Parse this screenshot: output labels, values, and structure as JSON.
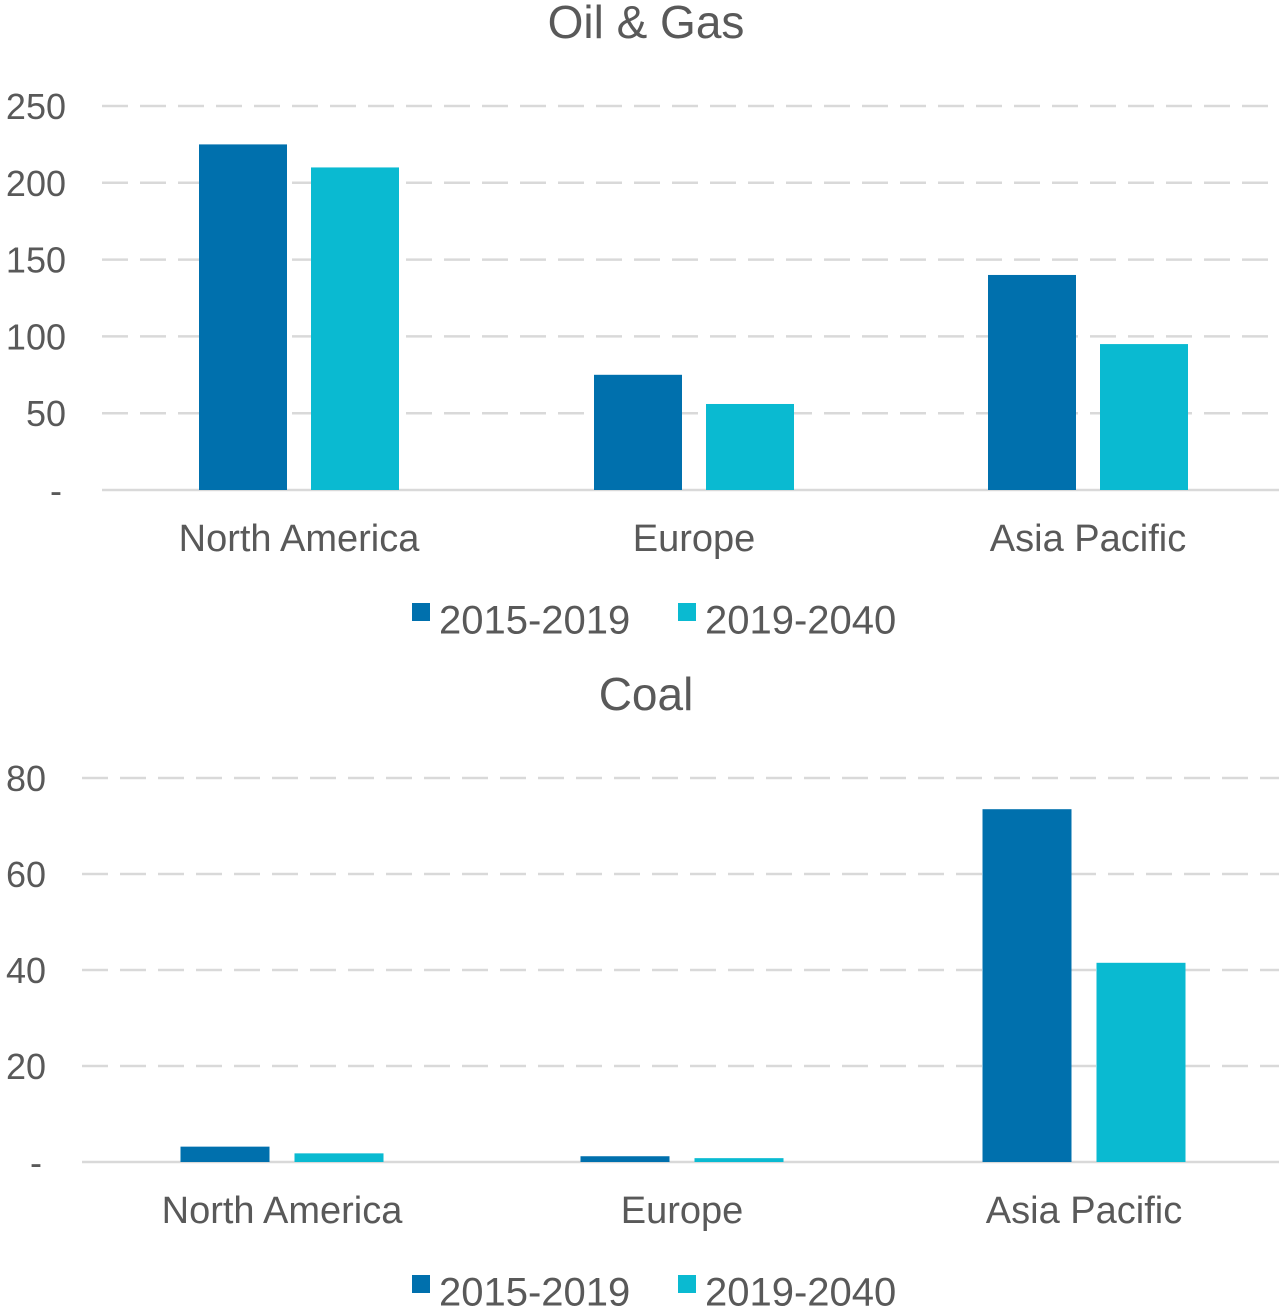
{
  "chart_data": [
    {
      "type": "bar",
      "title": "Oil & Gas",
      "xlabel": "",
      "ylabel": "",
      "categories": [
        "North America",
        "Europe",
        "Asia Pacific"
      ],
      "series": [
        {
          "name": "2015-2019",
          "color": "#0070AD",
          "values": [
            225,
            75,
            140
          ]
        },
        {
          "name": "2019-2040",
          "color": "#0ABAD1",
          "values": [
            210,
            56,
            95
          ]
        }
      ],
      "ylim": [
        0,
        250
      ],
      "yticks": [
        0,
        50,
        100,
        150,
        200,
        250
      ],
      "ytick_labels": [
        "-",
        "50",
        "100",
        "150",
        "200",
        "250"
      ],
      "grid": true,
      "legend_position": "bottom"
    },
    {
      "type": "bar",
      "title": "Coal",
      "xlabel": "",
      "ylabel": "",
      "categories": [
        "North America",
        "Europe",
        "Asia Pacific"
      ],
      "series": [
        {
          "name": "2015-2019",
          "color": "#0070AD",
          "values": [
            3.2,
            1.2,
            73.5
          ]
        },
        {
          "name": "2019-2040",
          "color": "#0ABAD1",
          "values": [
            1.8,
            0.8,
            41.5
          ]
        }
      ],
      "ylim": [
        0,
        80
      ],
      "yticks": [
        0,
        20,
        40,
        60,
        80
      ],
      "ytick_labels": [
        "-",
        "20",
        "40",
        "60",
        "80"
      ],
      "grid": true,
      "legend_position": "bottom"
    }
  ]
}
